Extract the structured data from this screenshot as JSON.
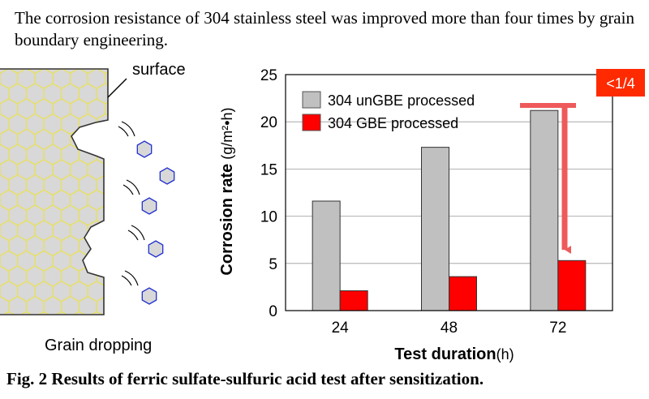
{
  "caption_top": "The corrosion resistance of 304 stainless steel was improved more than four times by grain boundary engineering.",
  "caption_bottom": "Fig. 2 Results of ferric sulfate-sulfuric acid test after sensitization.",
  "diagram": {
    "surface_label": "surface",
    "grain_dropping_label": "Grain dropping"
  },
  "colors": {
    "ungbe": "#c0c0c0",
    "gbe": "#ff0000",
    "arrow": "#ee5a5a",
    "badge": "#ff2a00",
    "grain_edge": "#e8e060",
    "grain_fill": "#d8d8d8",
    "dropped_grain_edge": "#2030d0"
  },
  "chart_data": {
    "type": "bar",
    "categories": [
      "24",
      "48",
      "72"
    ],
    "series": [
      {
        "name": "304 unGBE processed",
        "values": [
          11.6,
          17.3,
          21.2
        ]
      },
      {
        "name": "304 GBE processed",
        "values": [
          2.1,
          3.6,
          5.3
        ]
      }
    ],
    "xlabel": "Test duration",
    "xlabel_unit": "(h)",
    "ylabel": "Corrosion rate",
    "ylabel_unit": "(g/m²•h)",
    "ylim": [
      0,
      25
    ],
    "yticks": [
      "0",
      "5",
      "10",
      "15",
      "20",
      "25"
    ],
    "grid": true,
    "legend": "top-left",
    "annotation": "<1/4"
  }
}
